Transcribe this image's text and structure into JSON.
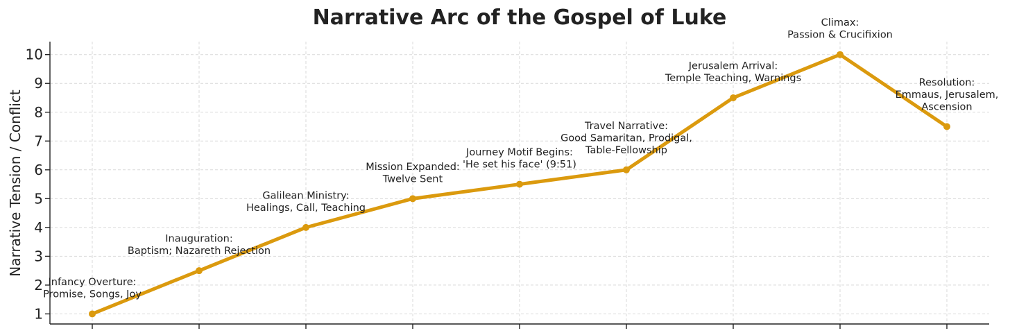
{
  "chart_data": {
    "type": "line",
    "title": "Narrative Arc of the Gospel of Luke",
    "ylabel": "Narrative Tension / Conflict",
    "xlabel": "",
    "ylim": [
      0.65,
      10.45
    ],
    "yticks": [
      1,
      2,
      3,
      4,
      5,
      6,
      7,
      8,
      9,
      10
    ],
    "grid": true,
    "color": "#DB9A0E",
    "x": [
      1,
      2,
      3,
      4,
      5,
      6,
      7,
      8,
      9
    ],
    "values": [
      1,
      2.5,
      4,
      5,
      5.5,
      6,
      8.5,
      10,
      7.5
    ],
    "annotations": [
      {
        "lines": [
          "Infancy Overture:",
          "Promise, Songs, Joy"
        ]
      },
      {
        "lines": [
          "Inauguration:",
          "Baptism; Nazareth Rejection"
        ]
      },
      {
        "lines": [
          "Galilean Ministry:",
          "Healings, Call, Teaching"
        ]
      },
      {
        "lines": [
          "Mission Expanded:",
          "Twelve Sent"
        ]
      },
      {
        "lines": [
          "Journey Motif Begins:",
          "'He set his face' (9:51)"
        ]
      },
      {
        "lines": [
          "Travel Narrative:",
          "Good Samaritan, Prodigal,",
          "Table-Fellowship"
        ]
      },
      {
        "lines": [
          "Jerusalem Arrival:",
          "Temple Teaching, Warnings"
        ]
      },
      {
        "lines": [
          "Climax:",
          "Passion & Crucifixion"
        ]
      },
      {
        "lines": [
          "Resolution:",
          "Emmaus, Jerusalem,",
          "Ascension"
        ]
      }
    ]
  }
}
